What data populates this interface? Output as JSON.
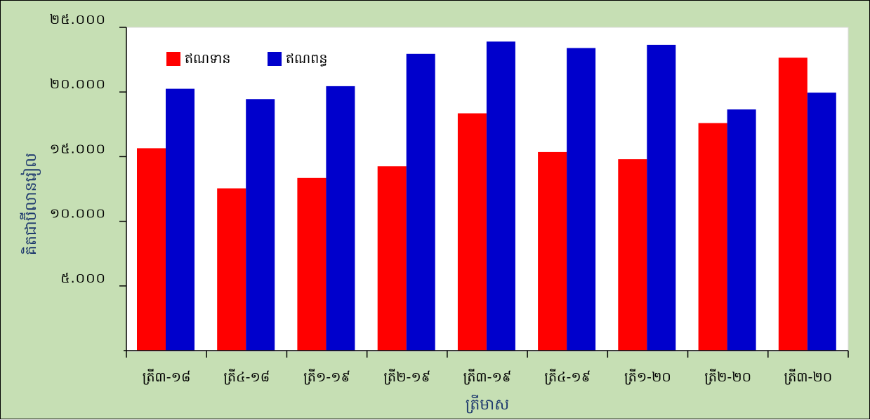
{
  "chart_data": {
    "type": "bar",
    "categories": [
      "ត្រី៣-១៨",
      "ត្រី៤-១៨",
      "ត្រី១-១៩",
      "ត្រី២-១៩",
      "ត្រី៣-១៩",
      "ត្រី៤-១៩",
      "ត្រី១-២០",
      "ត្រី២-២០",
      "ត្រី៣-២០"
    ],
    "series": [
      {
        "name": "ឥណទាន",
        "color": "#ff0000",
        "values": [
          15650,
          12550,
          13350,
          14250,
          18350,
          15350,
          14800,
          17600,
          22650
        ]
      },
      {
        "name": "ឥណពន្ធ",
        "color": "#0000cc",
        "values": [
          20250,
          19450,
          20450,
          22950,
          23900,
          23400,
          23650,
          18650,
          19950
        ]
      }
    ],
    "title": "",
    "xlabel": "ត្រីមាស",
    "ylabel": "គិតជាប៊ីលានរៀល",
    "ylim": [
      0,
      25000
    ],
    "yticks": [
      {
        "value": 5000,
        "label": "៥.០០០"
      },
      {
        "value": 10000,
        "label": "១០.០០០"
      },
      {
        "value": 15000,
        "label": "១៥.០០០"
      },
      {
        "value": 20000,
        "label": "២០.០០០"
      },
      {
        "value": 25000,
        "label": "២៥.០០០"
      }
    ],
    "grid": false,
    "legend": "top-left",
    "background_color": "#c6dfb4",
    "plot_background_color": "#ffffff"
  }
}
